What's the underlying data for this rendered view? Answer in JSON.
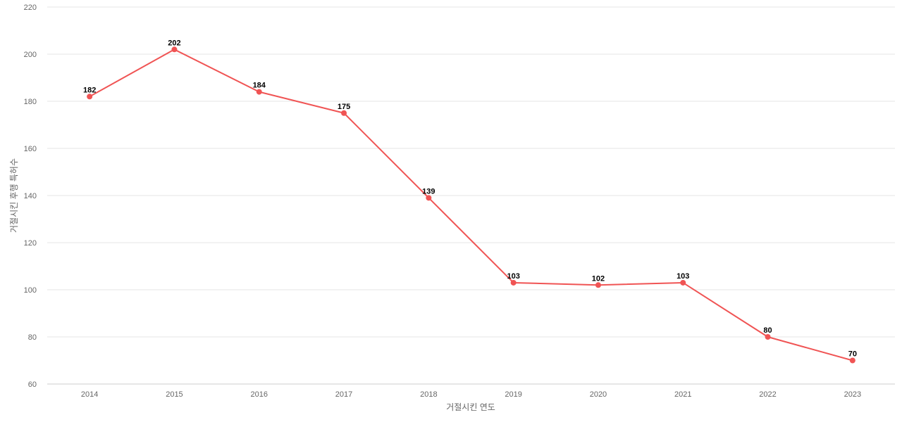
{
  "chart_data": {
    "type": "line",
    "title": "",
    "xlabel": "거절시킨 연도",
    "ylabel": "거절시킨 후행 특허수",
    "categories": [
      "2014",
      "2015",
      "2016",
      "2017",
      "2018",
      "2019",
      "2020",
      "2021",
      "2022",
      "2023"
    ],
    "series": [
      {
        "values": [
          182,
          202,
          184,
          175,
          139,
          103,
          102,
          103,
          80,
          70
        ],
        "color": "#f05454"
      }
    ],
    "ylim": [
      60,
      220
    ],
    "yticks": [
      60,
      80,
      100,
      120,
      140,
      160,
      180,
      200,
      220
    ],
    "grid": true,
    "data_labels": true,
    "legend": "none"
  }
}
